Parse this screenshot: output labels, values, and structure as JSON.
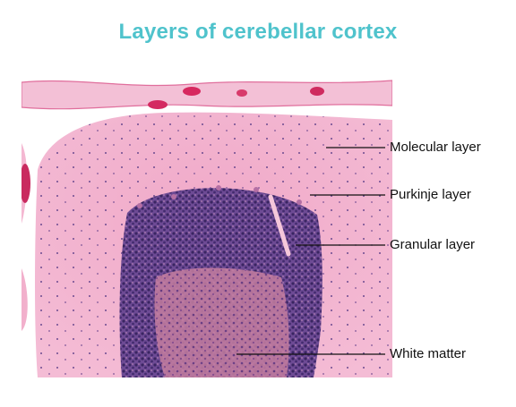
{
  "title": "Layers of cerebellar cortex",
  "colors": {
    "title": "#4fc3cc",
    "molecular": "#f2aacb",
    "molecular_light": "#f6c6dc",
    "granular": "#5e3f86",
    "white_matter": "#c9839f",
    "leader_line": "#111111",
    "label_text": "#111111"
  },
  "labels": [
    {
      "id": "molecular",
      "text": "Molecular layer"
    },
    {
      "id": "purkinje",
      "text": "Purkinje layer"
    },
    {
      "id": "granular",
      "text": "Granular layer"
    },
    {
      "id": "white",
      "text": "White matter"
    }
  ]
}
